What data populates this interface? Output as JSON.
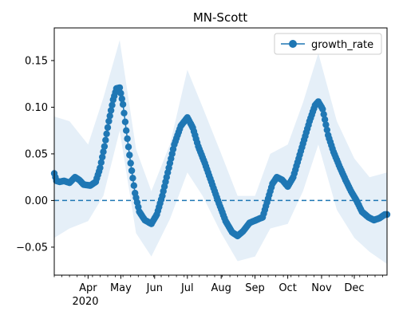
{
  "chart_data": {
    "type": "line",
    "title": "MN-Scott",
    "xlabel": "",
    "ylabel": "",
    "x_start": "2020-03-01",
    "x_end": "2020-12-31",
    "xlim": [
      "2020-03-01",
      "2020-12-31"
    ],
    "ylim": [
      -0.08,
      0.185
    ],
    "yticks": [
      -0.05,
      0.0,
      0.05,
      0.1,
      0.15
    ],
    "ytick_labels": [
      "−0.05",
      "0.00",
      "0.05",
      "0.10",
      "0.15"
    ],
    "xticks": [
      {
        "date": "2020-04-01",
        "label": "Apr"
      },
      {
        "date": "2020-05-01",
        "label": "May"
      },
      {
        "date": "2020-06-01",
        "label": "Jun"
      },
      {
        "date": "2020-07-01",
        "label": "Jul"
      },
      {
        "date": "2020-08-01",
        "label": "Aug"
      },
      {
        "date": "2020-09-01",
        "label": "Sep"
      },
      {
        "date": "2020-10-01",
        "label": "Oct"
      },
      {
        "date": "2020-11-01",
        "label": "Nov"
      },
      {
        "date": "2020-12-01",
        "label": "Dec"
      }
    ],
    "year_label": "2020",
    "grid": false,
    "legend_position": "top-right",
    "reference_line": {
      "y": 0.0,
      "style": "dashed"
    },
    "colors": {
      "series": "#1f77b4",
      "band": "#dce9f5",
      "reference": "#1f77b4"
    },
    "series": [
      {
        "name": "growth_rate",
        "marker": "circle",
        "keypoints": [
          [
            "2020-03-01",
            0.029
          ],
          [
            "2020-03-03",
            0.021
          ],
          [
            "2020-03-06",
            0.02
          ],
          [
            "2020-03-10",
            0.021
          ],
          [
            "2020-03-15",
            0.019
          ],
          [
            "2020-03-20",
            0.025
          ],
          [
            "2020-03-24",
            0.022
          ],
          [
            "2020-03-28",
            0.017
          ],
          [
            "2020-04-03",
            0.016
          ],
          [
            "2020-04-08",
            0.02
          ],
          [
            "2020-04-12",
            0.035
          ],
          [
            "2020-04-16",
            0.058
          ],
          [
            "2020-04-20",
            0.085
          ],
          [
            "2020-04-24",
            0.108
          ],
          [
            "2020-04-27",
            0.12
          ],
          [
            "2020-04-30",
            0.121
          ],
          [
            "2020-05-03",
            0.103
          ],
          [
            "2020-05-06",
            0.075
          ],
          [
            "2020-05-10",
            0.04
          ],
          [
            "2020-05-14",
            0.008
          ],
          [
            "2020-05-18",
            -0.012
          ],
          [
            "2020-05-23",
            -0.021
          ],
          [
            "2020-05-29",
            -0.025
          ],
          [
            "2020-06-03",
            -0.015
          ],
          [
            "2020-06-08",
            0.005
          ],
          [
            "2020-06-13",
            0.03
          ],
          [
            "2020-06-19",
            0.06
          ],
          [
            "2020-06-25",
            0.08
          ],
          [
            "2020-07-01",
            0.089
          ],
          [
            "2020-07-06",
            0.078
          ],
          [
            "2020-07-11",
            0.058
          ],
          [
            "2020-07-17",
            0.04
          ],
          [
            "2020-07-23",
            0.02
          ],
          [
            "2020-07-29",
            0.0
          ],
          [
            "2020-08-05",
            -0.022
          ],
          [
            "2020-08-11",
            -0.034
          ],
          [
            "2020-08-16",
            -0.038
          ],
          [
            "2020-08-21",
            -0.033
          ],
          [
            "2020-08-27",
            -0.024
          ],
          [
            "2020-09-02",
            -0.021
          ],
          [
            "2020-09-08",
            -0.018
          ],
          [
            "2020-09-12",
            -0.002
          ],
          [
            "2020-09-17",
            0.018
          ],
          [
            "2020-09-21",
            0.025
          ],
          [
            "2020-09-26",
            0.022
          ],
          [
            "2020-10-01",
            0.015
          ],
          [
            "2020-10-06",
            0.025
          ],
          [
            "2020-10-11",
            0.045
          ],
          [
            "2020-10-16",
            0.065
          ],
          [
            "2020-10-21",
            0.085
          ],
          [
            "2020-10-26",
            0.102
          ],
          [
            "2020-10-29",
            0.106
          ],
          [
            "2020-11-02",
            0.098
          ],
          [
            "2020-11-07",
            0.07
          ],
          [
            "2020-11-12",
            0.052
          ],
          [
            "2020-11-18",
            0.035
          ],
          [
            "2020-11-23",
            0.022
          ],
          [
            "2020-11-28",
            0.01
          ],
          [
            "2020-12-03",
            0.0
          ],
          [
            "2020-12-08",
            -0.012
          ],
          [
            "2020-12-14",
            -0.018
          ],
          [
            "2020-12-19",
            -0.021
          ],
          [
            "2020-12-24",
            -0.019
          ],
          [
            "2020-12-29",
            -0.015
          ],
          [
            "2020-12-31",
            -0.015
          ]
        ]
      }
    ],
    "confidence_band": {
      "lower": [
        [
          "2020-03-01",
          -0.04
        ],
        [
          "2020-03-15",
          -0.03
        ],
        [
          "2020-04-01",
          -0.022
        ],
        [
          "2020-04-15",
          0.005
        ],
        [
          "2020-04-30",
          0.075
        ],
        [
          "2020-05-15",
          -0.035
        ],
        [
          "2020-05-29",
          -0.06
        ],
        [
          "2020-06-15",
          -0.02
        ],
        [
          "2020-07-01",
          0.03
        ],
        [
          "2020-07-15",
          0.005
        ],
        [
          "2020-08-01",
          -0.035
        ],
        [
          "2020-08-16",
          -0.065
        ],
        [
          "2020-09-01",
          -0.06
        ],
        [
          "2020-09-15",
          -0.03
        ],
        [
          "2020-10-01",
          -0.025
        ],
        [
          "2020-10-15",
          0.01
        ],
        [
          "2020-10-29",
          0.06
        ],
        [
          "2020-11-15",
          -0.01
        ],
        [
          "2020-12-01",
          -0.04
        ],
        [
          "2020-12-15",
          -0.055
        ],
        [
          "2020-12-31",
          -0.068
        ]
      ],
      "upper": [
        [
          "2020-03-01",
          0.09
        ],
        [
          "2020-03-15",
          0.085
        ],
        [
          "2020-04-01",
          0.06
        ],
        [
          "2020-04-15",
          0.11
        ],
        [
          "2020-04-30",
          0.172
        ],
        [
          "2020-05-15",
          0.055
        ],
        [
          "2020-05-29",
          0.01
        ],
        [
          "2020-06-15",
          0.06
        ],
        [
          "2020-07-01",
          0.14
        ],
        [
          "2020-07-15",
          0.1
        ],
        [
          "2020-08-01",
          0.05
        ],
        [
          "2020-08-16",
          0.005
        ],
        [
          "2020-09-01",
          0.005
        ],
        [
          "2020-09-15",
          0.05
        ],
        [
          "2020-10-01",
          0.06
        ],
        [
          "2020-10-15",
          0.105
        ],
        [
          "2020-10-29",
          0.158
        ],
        [
          "2020-11-15",
          0.085
        ],
        [
          "2020-12-01",
          0.045
        ],
        [
          "2020-12-15",
          0.025
        ],
        [
          "2020-12-31",
          0.03
        ]
      ]
    }
  }
}
